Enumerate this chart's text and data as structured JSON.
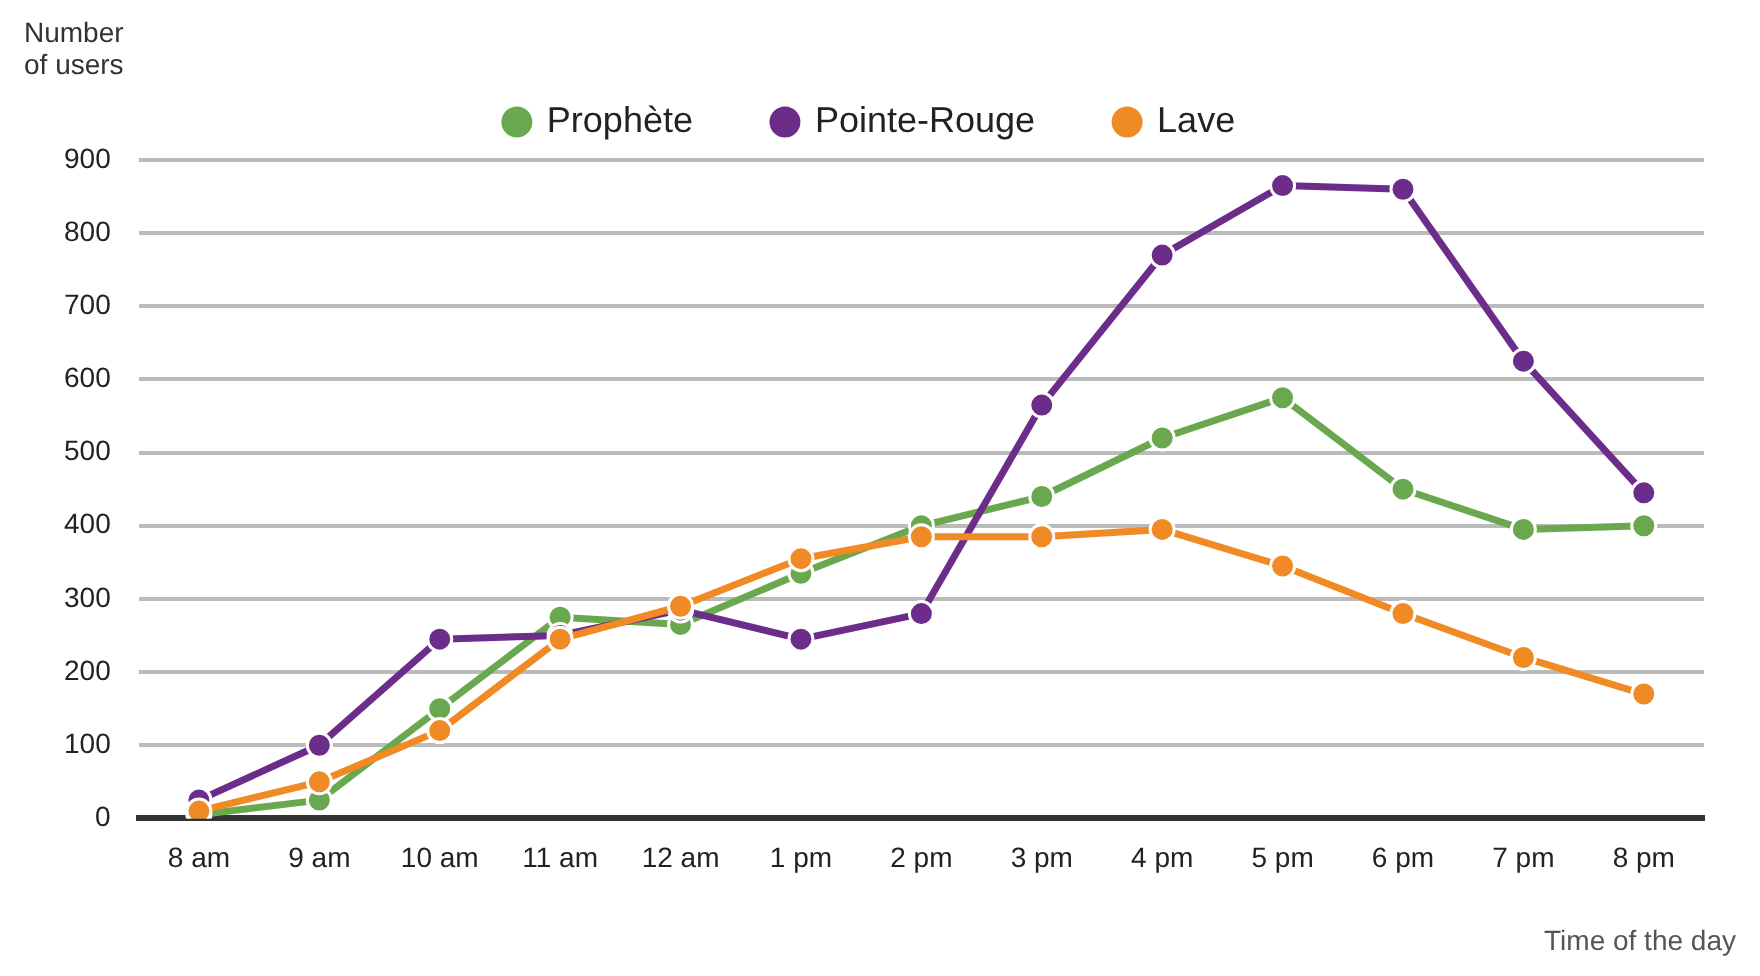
{
  "chart_data": {
    "type": "line",
    "ylabel": "Number of users",
    "xlabel": "Time of the day",
    "categories": [
      "8 am",
      "9 am",
      "10 am",
      "11 am",
      "12 am",
      "1 pm",
      "2 pm",
      "3 pm",
      "4 pm",
      "5 pm",
      "6 pm",
      "7 pm",
      "8 pm"
    ],
    "series": [
      {
        "name": "Prophète",
        "color": "#6aa84f",
        "values": [
          5,
          25,
          150,
          275,
          265,
          335,
          400,
          440,
          520,
          575,
          450,
          395,
          400
        ]
      },
      {
        "name": "Pointe-Rouge",
        "color": "#6b2c8a",
        "values": [
          25,
          100,
          245,
          250,
          285,
          245,
          280,
          565,
          770,
          865,
          860,
          625,
          445
        ]
      },
      {
        "name": "Lave",
        "color": "#f08a24",
        "values": [
          10,
          50,
          120,
          245,
          290,
          355,
          385,
          385,
          395,
          345,
          280,
          220,
          170
        ]
      }
    ],
    "ylim": [
      0,
      900
    ],
    "yticks": [
      0,
      100,
      200,
      300,
      400,
      500,
      600,
      700,
      800,
      900
    ],
    "grid": "y",
    "legend": "top",
    "marker": "circle",
    "line_style": "solid"
  }
}
